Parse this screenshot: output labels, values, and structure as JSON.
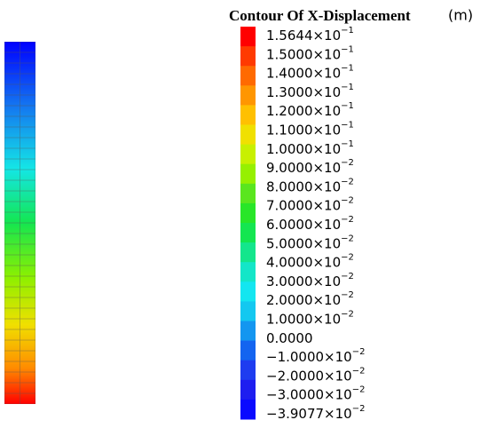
{
  "legend": {
    "title": "Contour Of X-Displacement",
    "unit": "(m)",
    "items": [
      {
        "text": "1.5644×10",
        "exp": "−1",
        "color": "#ff0000"
      },
      {
        "text": "1.5000×10",
        "exp": "−1",
        "color": "#ff3a00"
      },
      {
        "text": "1.4000×10",
        "exp": "−1",
        "color": "#ff6a00"
      },
      {
        "text": "1.3000×10",
        "exp": "−1",
        "color": "#ff9600"
      },
      {
        "text": "1.2000×10",
        "exp": "−1",
        "color": "#ffc000"
      },
      {
        "text": "1.1000×10",
        "exp": "−1",
        "color": "#f0e000"
      },
      {
        "text": "1.0000×10",
        "exp": "−1",
        "color": "#c8f000"
      },
      {
        "text": "9.0000×10",
        "exp": "−2",
        "color": "#96f000"
      },
      {
        "text": "8.0000×10",
        "exp": "−2",
        "color": "#5ae61e"
      },
      {
        "text": "7.0000×10",
        "exp": "−2",
        "color": "#28e628"
      },
      {
        "text": "6.0000×10",
        "exp": "−2",
        "color": "#14e650"
      },
      {
        "text": "5.0000×10",
        "exp": "−2",
        "color": "#14e68c"
      },
      {
        "text": "4.0000×10",
        "exp": "−2",
        "color": "#14e6c8"
      },
      {
        "text": "3.0000×10",
        "exp": "−2",
        "color": "#14e6f0"
      },
      {
        "text": "2.0000×10",
        "exp": "−2",
        "color": "#14c8f0"
      },
      {
        "text": "1.0000×10",
        "exp": "−2",
        "color": "#1496f0"
      },
      {
        "text": "0.0000",
        "exp": null,
        "color": "#1464f0"
      },
      {
        "text": "−1.0000×10",
        "exp": "−2",
        "color": "#1e3cf0"
      },
      {
        "text": "−2.0000×10",
        "exp": "−2",
        "color": "#1e1ef0"
      },
      {
        "text": "−3.0000×10",
        "exp": "−2",
        "color": "#0a0aff"
      },
      {
        "text": "−3.9077×10",
        "exp": "−2",
        "color": "#0000ff"
      }
    ]
  }
}
